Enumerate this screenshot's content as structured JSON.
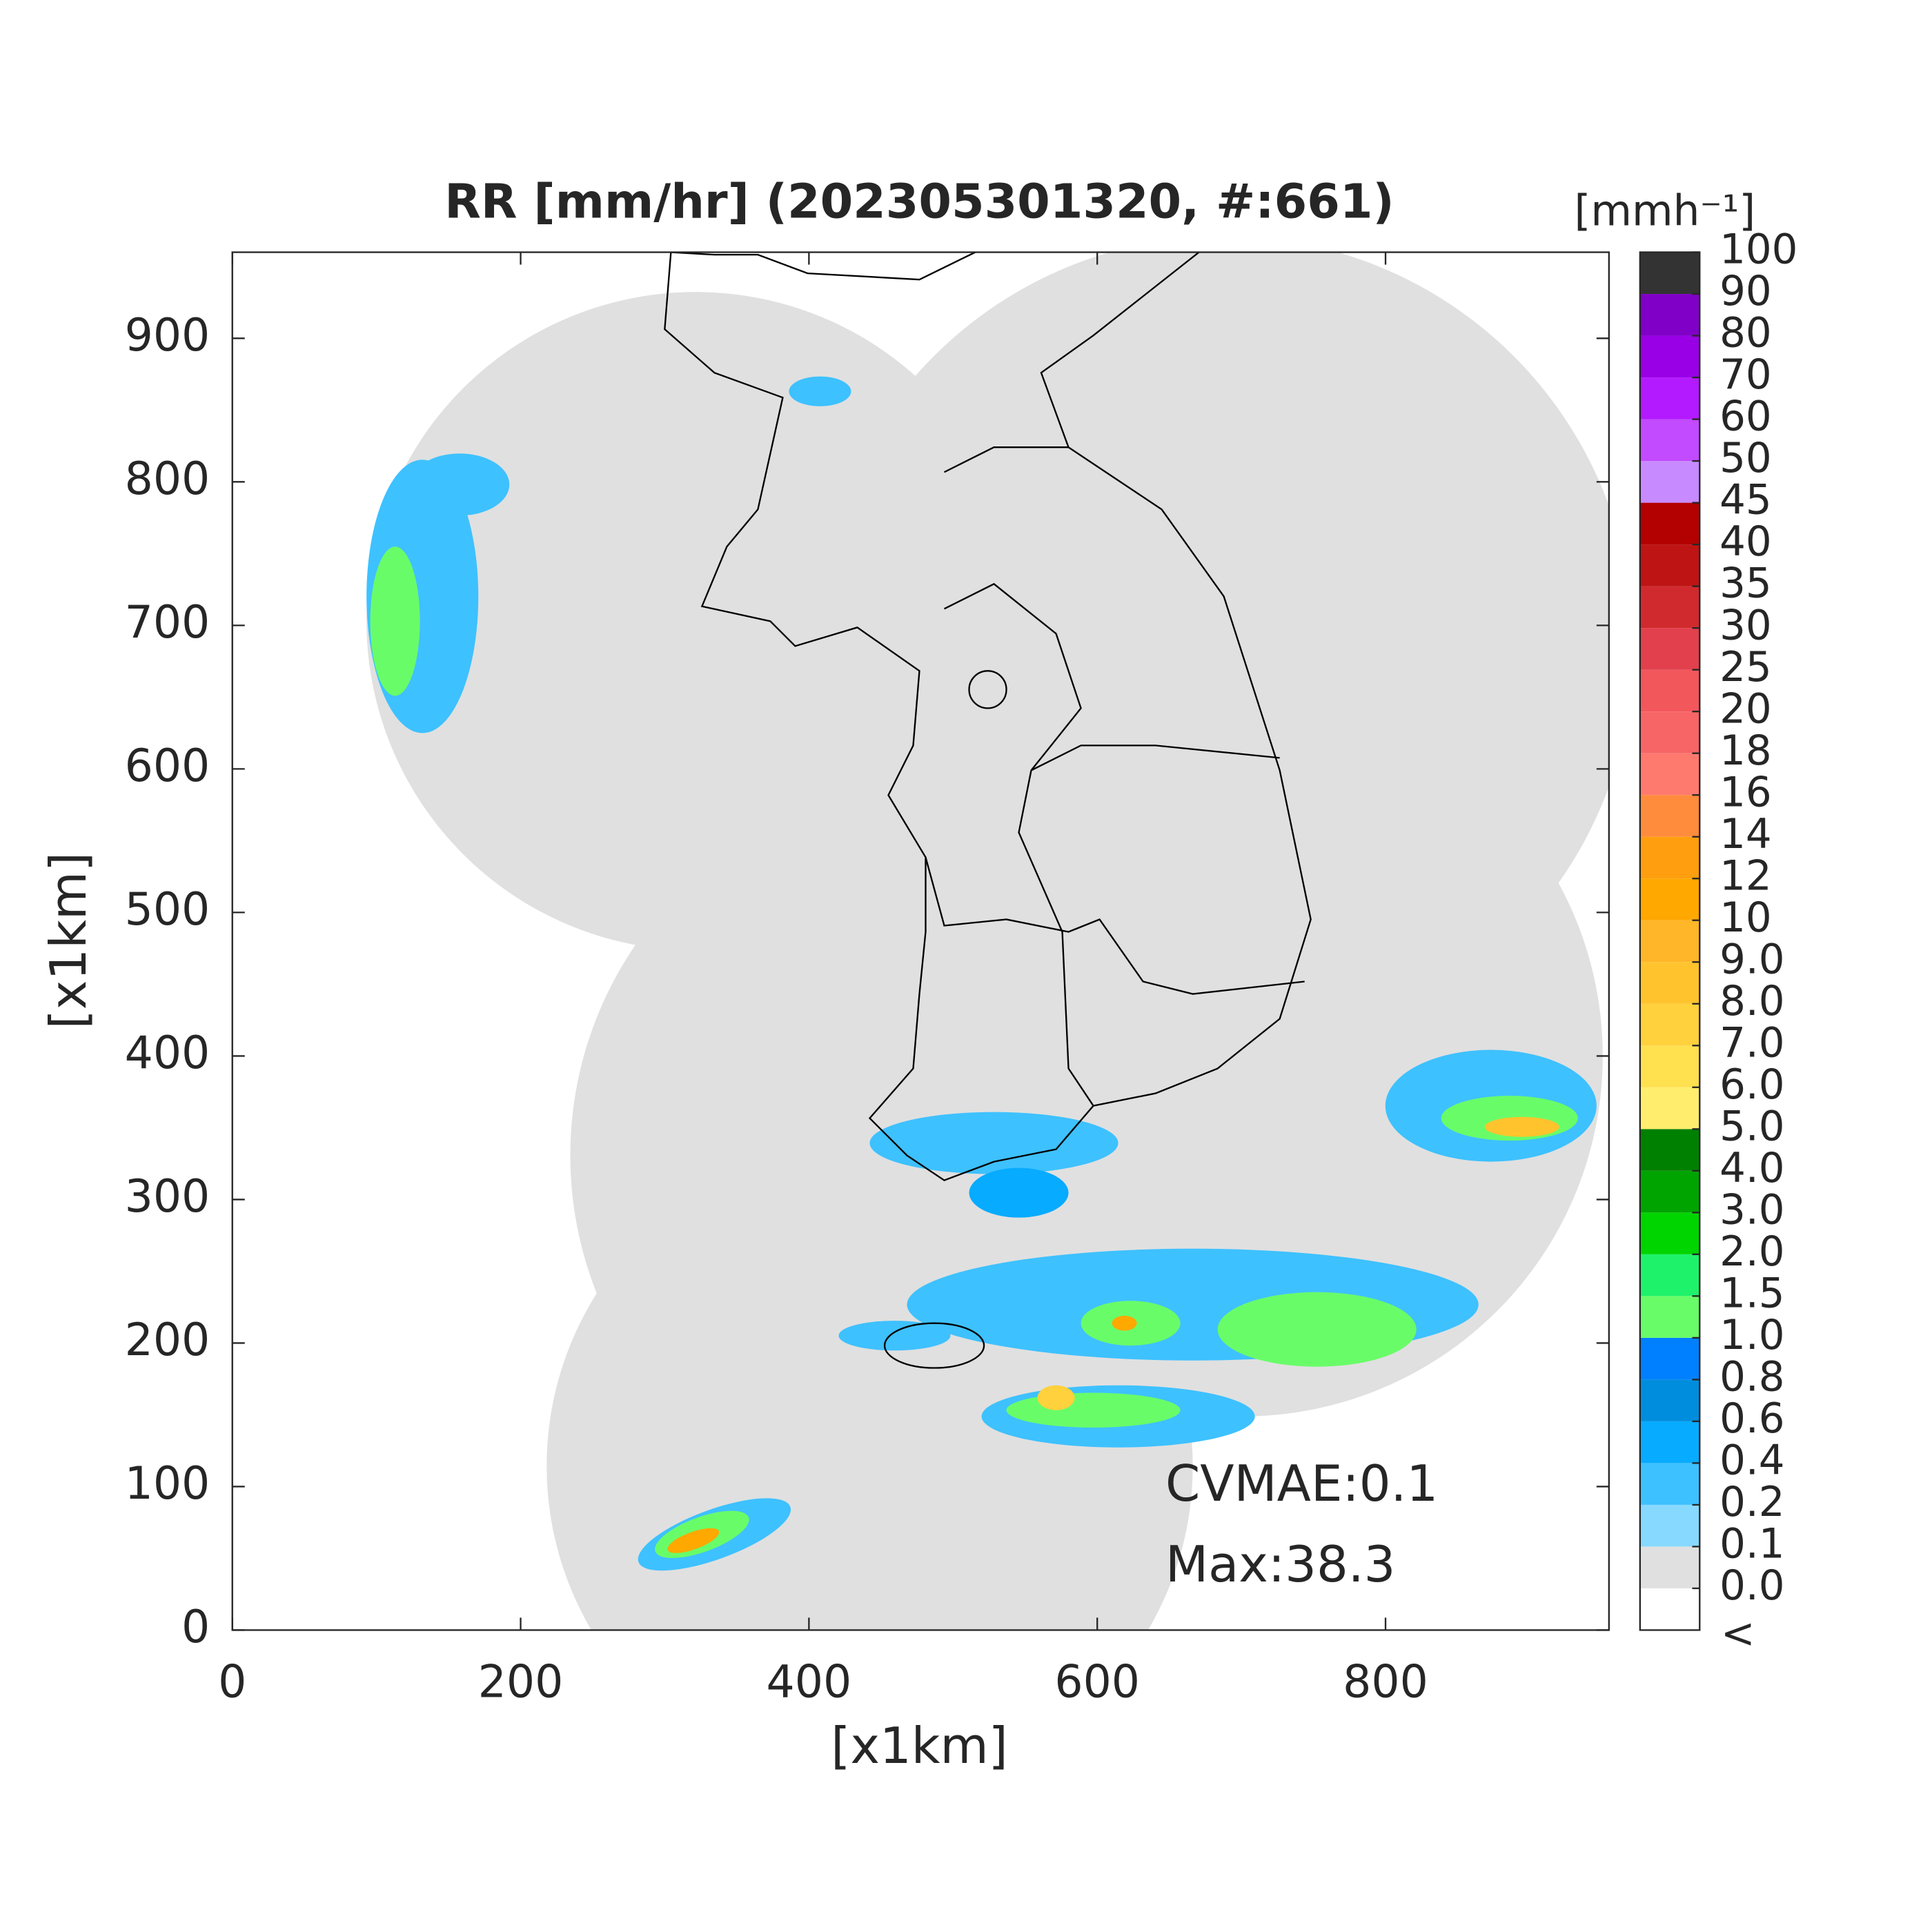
{
  "chart_data": {
    "type": "map",
    "title": "RR [mm/hr] (202305301320, #:661)",
    "xlabel": "[x1km]",
    "ylabel": "[x1km]",
    "xlim": [
      0,
      955
    ],
    "ylim": [
      0,
      960
    ],
    "xticks": [
      0,
      200,
      400,
      600,
      800
    ],
    "yticks": [
      0,
      100,
      200,
      300,
      400,
      500,
      600,
      700,
      800,
      900
    ],
    "annotations": [
      "CVMAE:0.1",
      "Max:38.3"
    ],
    "colorbar": {
      "title": "[mmh⁻¹]",
      "below_label": "<",
      "ticks": [
        {
          "value": 0,
          "label": "0.0"
        },
        0.1,
        0.2,
        0.4,
        0.6,
        0.8,
        {
          "value": 1,
          "label": "1.0"
        },
        1.5,
        {
          "value": 2,
          "label": "2.0"
        },
        {
          "value": 3,
          "label": "3.0"
        },
        {
          "value": 4,
          "label": "4.0"
        },
        {
          "value": 5,
          "label": "5.0"
        },
        {
          "value": 6,
          "label": "6.0"
        },
        {
          "value": 7,
          "label": "7.0"
        },
        {
          "value": 8,
          "label": "8.0"
        },
        {
          "value": 9,
          "label": "9.0"
        },
        10,
        12,
        14,
        16,
        18,
        20,
        25,
        30,
        35,
        40,
        45,
        50,
        60,
        70,
        80,
        90,
        100
      ],
      "colors": [
        "#ffffff",
        "#e0e0e0",
        "#87d9ff",
        "#3ec1ff",
        "#07abff",
        "#008dde",
        "#0080ff",
        "#69fc69",
        "#1ef26a",
        "#00d500",
        "#00a400",
        "#008000",
        "#ffee6e",
        "#ffe04f",
        "#ffd13c",
        "#ffc42d",
        "#ffb628",
        "#ffa800",
        "#ff9f0f",
        "#ff8c3c",
        "#ff7a6e",
        "#f76567",
        "#f2575c",
        "#e1404c",
        "#d02a2e",
        "#be1414",
        "#b30000",
        "#c88aff",
        "#c24aff",
        "#b31aff",
        "#9900e6",
        "#8000c8",
        "#333333"
      ]
    }
  }
}
